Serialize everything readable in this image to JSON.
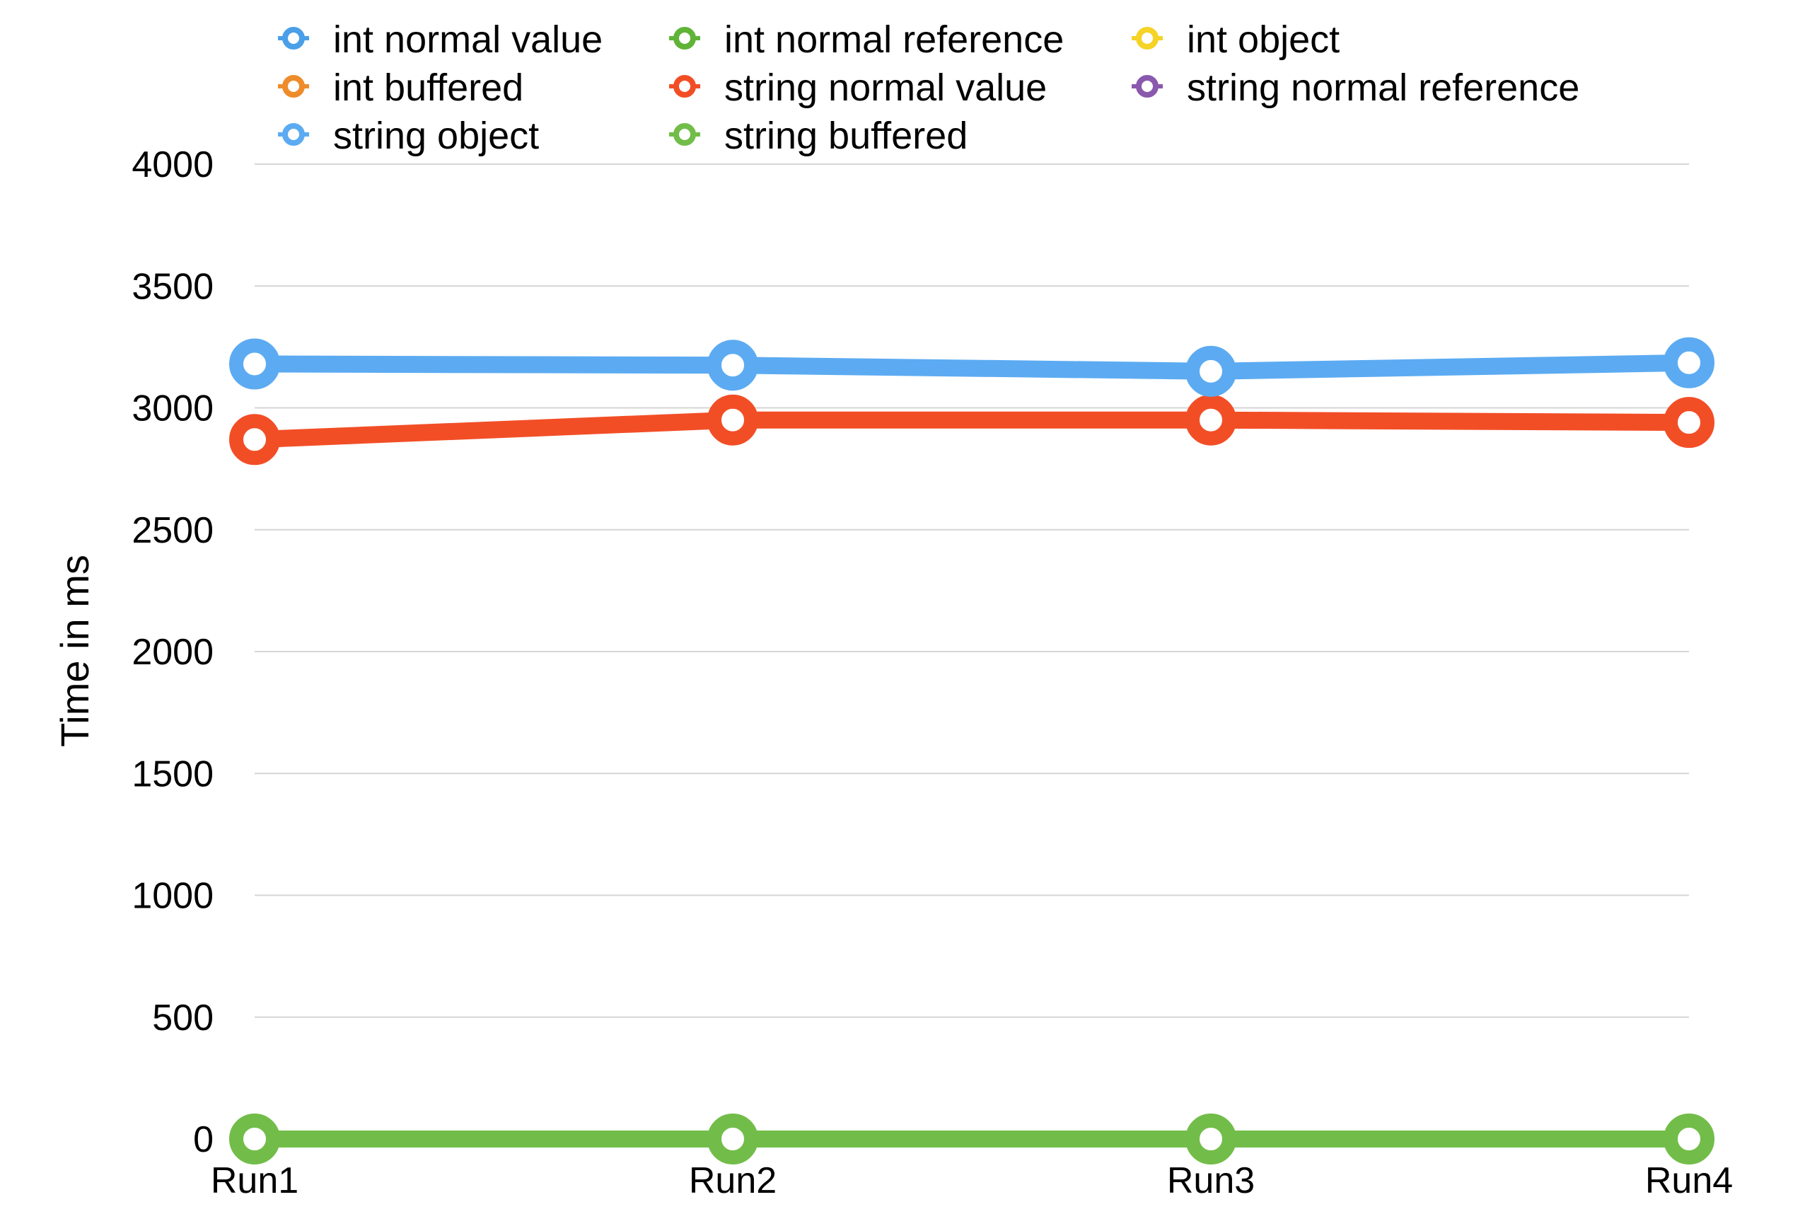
{
  "chart_data": {
    "type": "line",
    "title": "",
    "xlabel": "",
    "ylabel": "Time in ms",
    "categories": [
      "Run1",
      "Run2",
      "Run3",
      "Run4"
    ],
    "ylim": [
      0,
      4000
    ],
    "yticks": [
      0,
      500,
      1000,
      1500,
      2000,
      2500,
      3000,
      3500,
      4000
    ],
    "grid": true,
    "legend_position": "top",
    "series": [
      {
        "name": "int normal value",
        "color": "#4a9fe8",
        "values": [
          null,
          null,
          null,
          null
        ]
      },
      {
        "name": "int normal reference",
        "color": "#5fb437",
        "values": [
          null,
          null,
          null,
          null
        ]
      },
      {
        "name": "int object",
        "color": "#f5d327",
        "values": [
          null,
          null,
          null,
          null
        ]
      },
      {
        "name": "int buffered",
        "color": "#ee8c2b",
        "values": [
          null,
          null,
          null,
          null
        ]
      },
      {
        "name": "string normal value",
        "color": "#f24e26",
        "values": [
          2870,
          2950,
          2950,
          2940
        ]
      },
      {
        "name": "string normal reference",
        "color": "#8a59ad",
        "values": [
          null,
          null,
          null,
          null
        ]
      },
      {
        "name": "string object",
        "color": "#5cabf2",
        "values": [
          3180,
          3175,
          3150,
          3185
        ]
      },
      {
        "name": "string buffered",
        "color": "#72bd49",
        "values": [
          0,
          0,
          0,
          0
        ]
      }
    ]
  }
}
